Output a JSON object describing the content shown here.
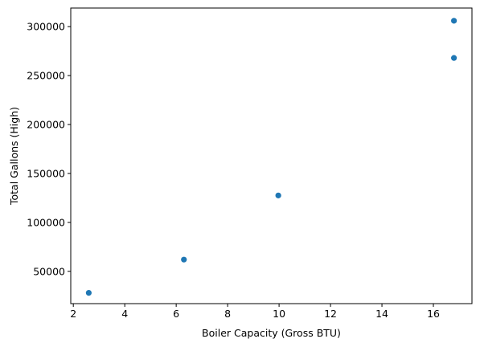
{
  "chart_data": {
    "type": "scatter",
    "xlabel": "Boiler Capacity (Gross  BTU)",
    "ylabel": "Total Gallons (High)",
    "xlim": [
      1.9,
      17.5
    ],
    "ylim": [
      17000,
      319000
    ],
    "xticks": [
      2,
      4,
      6,
      8,
      10,
      12,
      14,
      16
    ],
    "yticks": [
      50000,
      100000,
      150000,
      200000,
      250000,
      300000
    ],
    "grid": false,
    "marker_color": "#1f77b4",
    "points": [
      {
        "x": 2.6,
        "y": 28000
      },
      {
        "x": 6.3,
        "y": 62000
      },
      {
        "x": 9.97,
        "y": 127500
      },
      {
        "x": 16.8,
        "y": 268000
      },
      {
        "x": 16.8,
        "y": 306000
      }
    ]
  }
}
